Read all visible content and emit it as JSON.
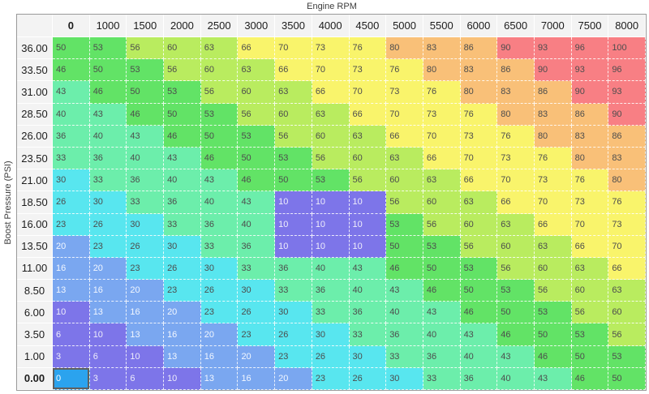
{
  "axes": {
    "x_title": "Engine RPM",
    "y_title": "Boost Pressure (PSI)"
  },
  "chart_data": {
    "type": "heatmap",
    "title": "Engine RPM",
    "xlabel": "Engine RPM",
    "ylabel": "Boost Pressure (PSI)",
    "columns": [
      "0",
      "1000",
      "1500",
      "2000",
      "2500",
      "3000",
      "3500",
      "4000",
      "4500",
      "5000",
      "5500",
      "6000",
      "6500",
      "7000",
      "7500",
      "8000"
    ],
    "rows": [
      "36.00",
      "33.50",
      "31.00",
      "28.50",
      "26.00",
      "23.50",
      "21.00",
      "18.50",
      "16.00",
      "13.50",
      "11.00",
      "8.50",
      "6.00",
      "3.50",
      "1.00",
      "0.00"
    ],
    "values": [
      [
        50,
        53,
        56,
        60,
        63,
        66,
        70,
        73,
        76,
        80,
        83,
        86,
        90,
        93,
        96,
        100
      ],
      [
        46,
        50,
        53,
        56,
        60,
        63,
        66,
        70,
        73,
        76,
        80,
        83,
        86,
        90,
        93,
        96
      ],
      [
        43,
        46,
        50,
        53,
        56,
        60,
        63,
        66,
        70,
        73,
        76,
        80,
        83,
        86,
        90,
        93
      ],
      [
        40,
        43,
        46,
        50,
        53,
        56,
        60,
        63,
        66,
        70,
        73,
        76,
        80,
        83,
        86,
        90
      ],
      [
        36,
        40,
        43,
        46,
        50,
        53,
        56,
        60,
        63,
        66,
        70,
        73,
        76,
        80,
        83,
        86
      ],
      [
        33,
        36,
        40,
        43,
        46,
        50,
        53,
        56,
        60,
        63,
        66,
        70,
        73,
        76,
        80,
        83
      ],
      [
        30,
        33,
        36,
        40,
        43,
        46,
        50,
        53,
        56,
        60,
        63,
        66,
        70,
        73,
        76,
        80
      ],
      [
        26,
        30,
        33,
        36,
        40,
        43,
        10,
        10,
        10,
        56,
        60,
        63,
        66,
        70,
        73,
        76
      ],
      [
        23,
        26,
        30,
        33,
        36,
        40,
        10,
        10,
        10,
        53,
        56,
        60,
        63,
        66,
        70,
        73
      ],
      [
        20,
        23,
        26,
        30,
        33,
        36,
        10,
        10,
        10,
        50,
        53,
        56,
        60,
        63,
        66,
        70
      ],
      [
        16,
        20,
        23,
        26,
        30,
        33,
        36,
        40,
        43,
        46,
        50,
        53,
        56,
        60,
        63,
        66
      ],
      [
        13,
        16,
        20,
        23,
        26,
        30,
        33,
        36,
        40,
        43,
        46,
        50,
        53,
        56,
        60,
        63
      ],
      [
        10,
        13,
        16,
        20,
        23,
        26,
        30,
        33,
        36,
        40,
        43,
        46,
        50,
        53,
        56,
        60
      ],
      [
        6,
        10,
        13,
        16,
        20,
        23,
        26,
        30,
        33,
        36,
        40,
        43,
        46,
        50,
        53,
        56
      ],
      [
        3,
        6,
        10,
        13,
        16,
        20,
        23,
        26,
        30,
        33,
        36,
        40,
        43,
        46,
        50,
        53
      ],
      [
        0,
        3,
        6,
        10,
        13,
        16,
        20,
        23,
        26,
        30,
        33,
        36,
        40,
        43,
        46,
        50
      ]
    ],
    "selected": {
      "row": "0.00",
      "column": "0",
      "row_index": 15,
      "col_index": 0,
      "value": 0
    },
    "selected_cell_color": "#2ba3ee",
    "selected_text_color": "#fdfdfd",
    "selected_border_color": "#5f5f5f",
    "color_bands": [
      {
        "min": 0,
        "max": 12,
        "bg": "#7d75e9",
        "fg": "#eeedfb"
      },
      {
        "min": 13,
        "max": 22,
        "bg": "#7aa7f0",
        "fg": "#f2f7ff"
      },
      {
        "min": 23,
        "max": 32,
        "bg": "#58e6ef",
        "fg": "#4d4d4d"
      },
      {
        "min": 33,
        "max": 45,
        "bg": "#6ceeab",
        "fg": "#4d4d4d"
      },
      {
        "min": 46,
        "max": 55,
        "bg": "#62e366",
        "fg": "#4d4d4d"
      },
      {
        "min": 56,
        "max": 65,
        "bg": "#b9ec5f",
        "fg": "#4d4d4d"
      },
      {
        "min": 66,
        "max": 79,
        "bg": "#f9f46b",
        "fg": "#4d4d4d"
      },
      {
        "min": 80,
        "max": 89,
        "bg": "#f9c078",
        "fg": "#4d4d4d"
      },
      {
        "min": 90,
        "max": 100,
        "bg": "#f87f84",
        "fg": "#4d4d4d"
      }
    ],
    "grid_on": true
  }
}
